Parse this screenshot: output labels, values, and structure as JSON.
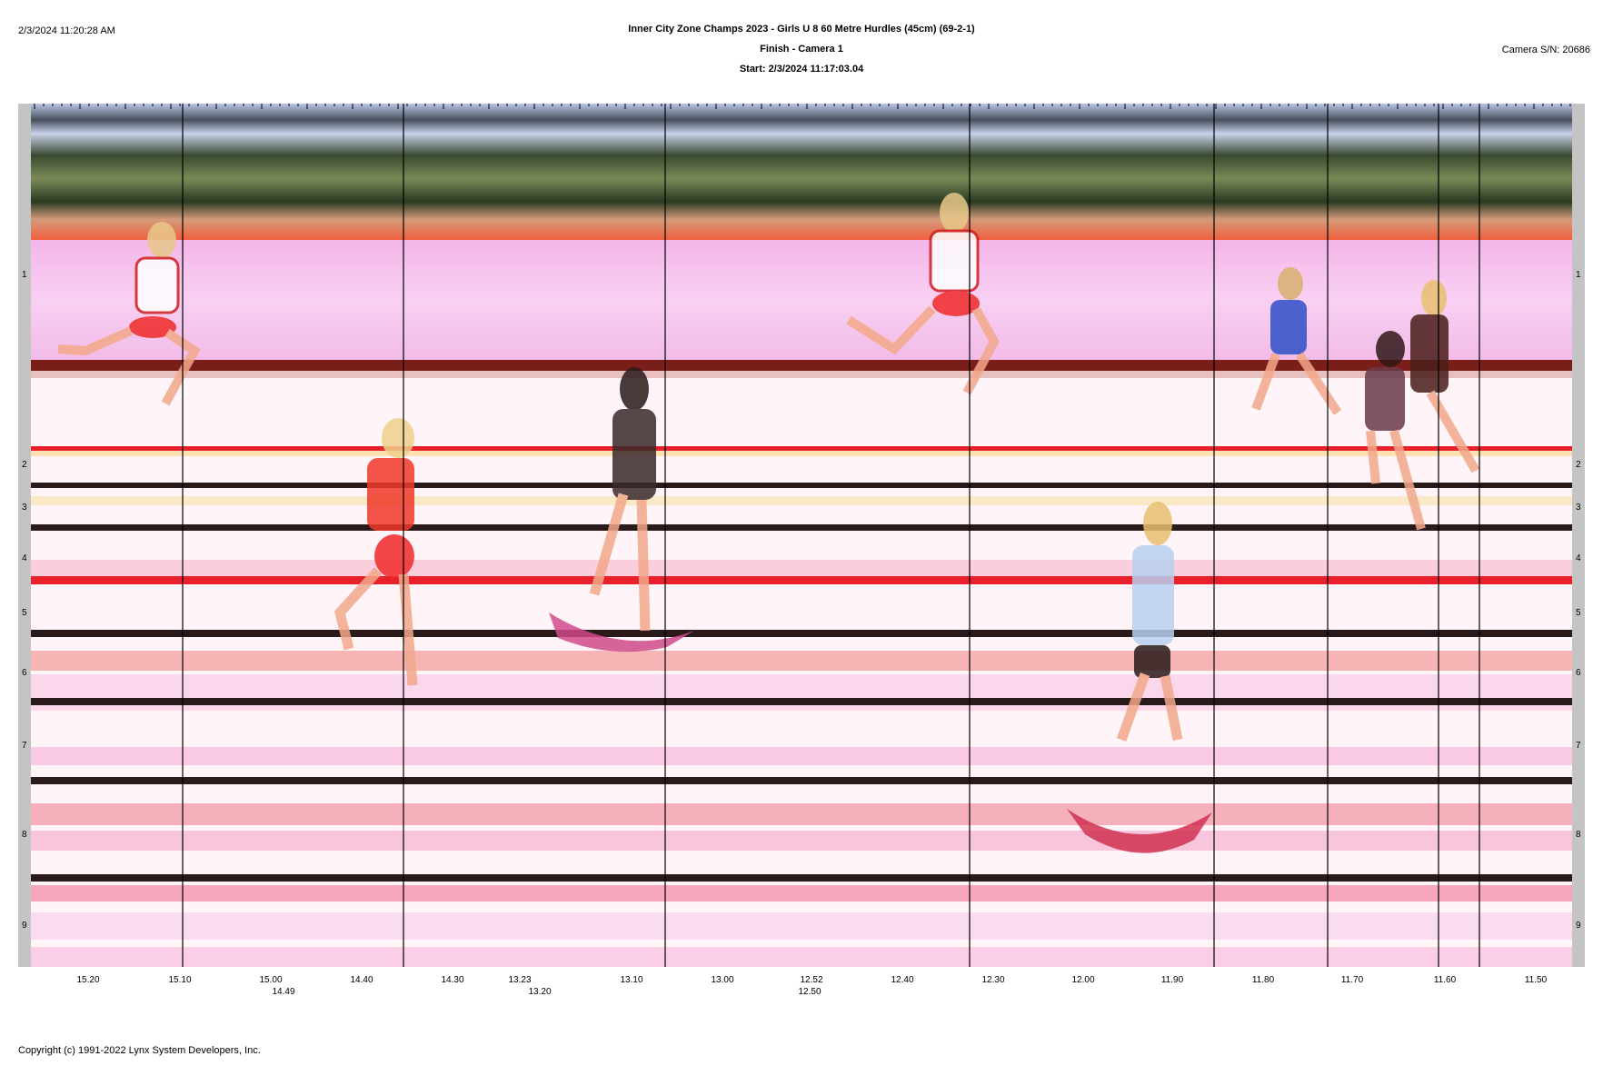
{
  "header": {
    "timestamp": "2/3/2024 11:20:28 AM",
    "title": "Inner City Zone Champs 2023 - Girls U 8 60 Metre Hurdles (45cm) (69-2-1)",
    "subtitle": "Finish - Camera 1",
    "start": "Start: 2/3/2024 11:17:03.04",
    "camera_sn": "Camera S/N: 20686"
  },
  "lanes": [
    "1",
    "2",
    "3",
    "4",
    "5",
    "6",
    "7",
    "8",
    "9"
  ],
  "time_axis": {
    "ticks": [
      "15.20",
      "15.10",
      "15.00",
      "14.40",
      "14.30",
      "13.23",
      "13.10",
      "13.00",
      "12.52",
      "12.40",
      "12.30",
      "12.00",
      "11.90",
      "11.80",
      "11.70",
      "11.60",
      "11.50"
    ],
    "sub_ticks": [
      "14.49",
      "13.20",
      "12.50"
    ]
  },
  "colors": {
    "track_pink": "#f6c8ef",
    "lane_line_dark": "#2a1a1a",
    "lane_line_red": "#e8202a",
    "frame_gray": "#c4c4c4"
  },
  "footer": {
    "copyright": "Copyright (c) 1991-2022 Lynx System Developers, Inc."
  }
}
